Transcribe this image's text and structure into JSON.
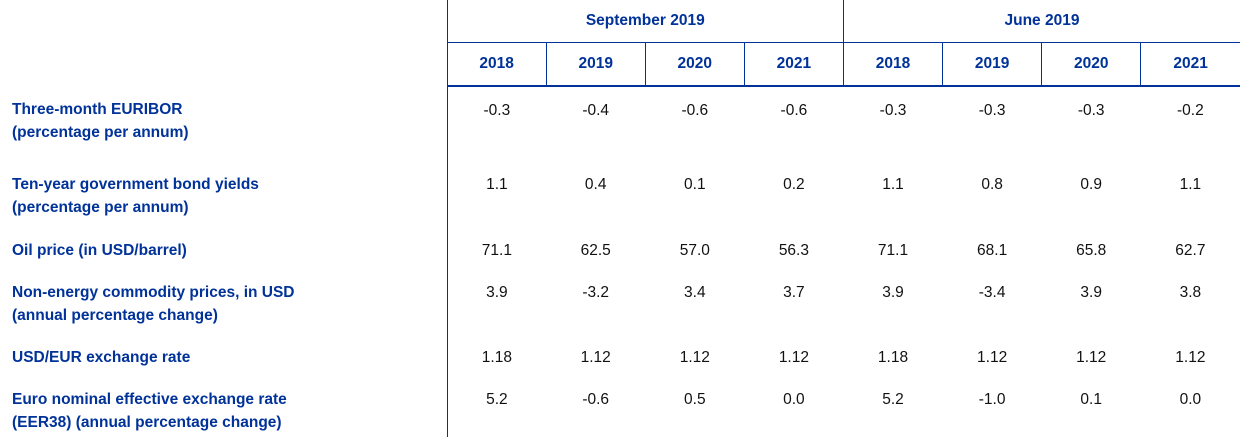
{
  "header": {
    "groups": [
      "September 2019",
      "June 2019"
    ],
    "years": [
      [
        "2018",
        "2019",
        "2020",
        "2021"
      ],
      [
        "2018",
        "2019",
        "2020",
        "2021"
      ]
    ]
  },
  "rows": [
    {
      "label": [
        "Three-month EURIBOR",
        "(percentage per annum)"
      ],
      "values": [
        "-0.3",
        "-0.4",
        "-0.6",
        "-0.6",
        "-0.3",
        "-0.3",
        "-0.3",
        "-0.2"
      ]
    },
    {
      "label": [
        "Ten-year government bond yields",
        "(percentage per annum)"
      ],
      "values": [
        "1.1",
        "0.4",
        "0.1",
        "0.2",
        "1.1",
        "0.8",
        "0.9",
        "1.1"
      ]
    },
    {
      "label": [
        "Oil price (in USD/barrel)"
      ],
      "values": [
        "71.1",
        "62.5",
        "57.0",
        "56.3",
        "71.1",
        "68.1",
        "65.8",
        "62.7"
      ]
    },
    {
      "label": [
        "Non-energy commodity prices, in USD",
        "(annual percentage change)"
      ],
      "values": [
        "3.9",
        "-3.2",
        "3.4",
        "3.7",
        "3.9",
        "-3.4",
        "3.9",
        "3.8"
      ]
    },
    {
      "label": [
        "USD/EUR exchange rate"
      ],
      "values": [
        "1.18",
        "1.12",
        "1.12",
        "1.12",
        "1.18",
        "1.12",
        "1.12",
        "1.12"
      ]
    },
    {
      "label": [
        "Euro nominal effective exchange rate",
        "(EER38) (annual percentage change)"
      ],
      "values": [
        "5.2",
        "-0.6",
        "0.5",
        "0.0",
        "5.2",
        "-1.0",
        "0.1",
        "0.0"
      ]
    }
  ]
}
